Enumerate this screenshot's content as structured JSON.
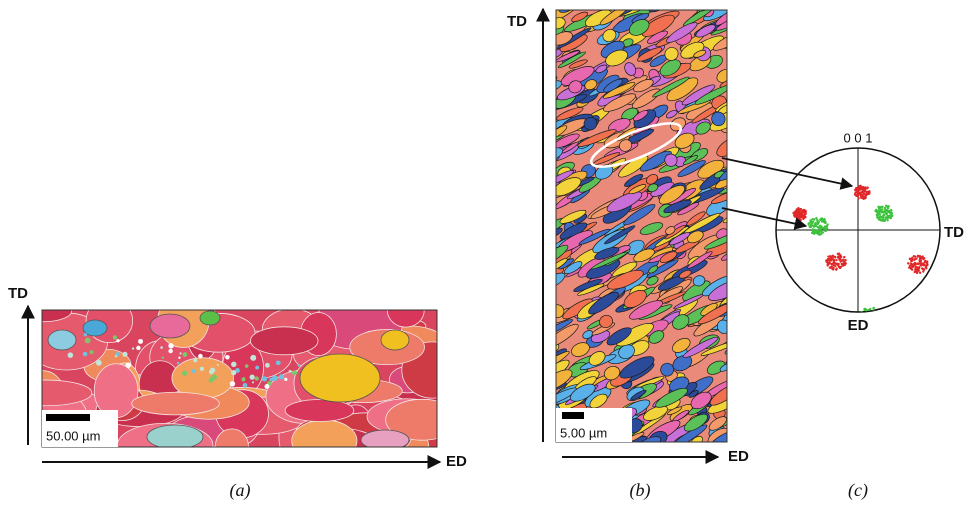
{
  "panel_a": {
    "axis_vertical": "TD",
    "axis_horizontal": "ED",
    "scale_bar": "50.00 µm",
    "caption": "(a)"
  },
  "panel_b": {
    "axis_vertical": "TD",
    "axis_horizontal": "ED",
    "scale_bar": "5.00 µm",
    "caption": "(b)"
  },
  "panel_c": {
    "pole": "0 0 1",
    "axis_right": "TD",
    "axis_bottom": "ED",
    "caption": "(c)"
  }
}
